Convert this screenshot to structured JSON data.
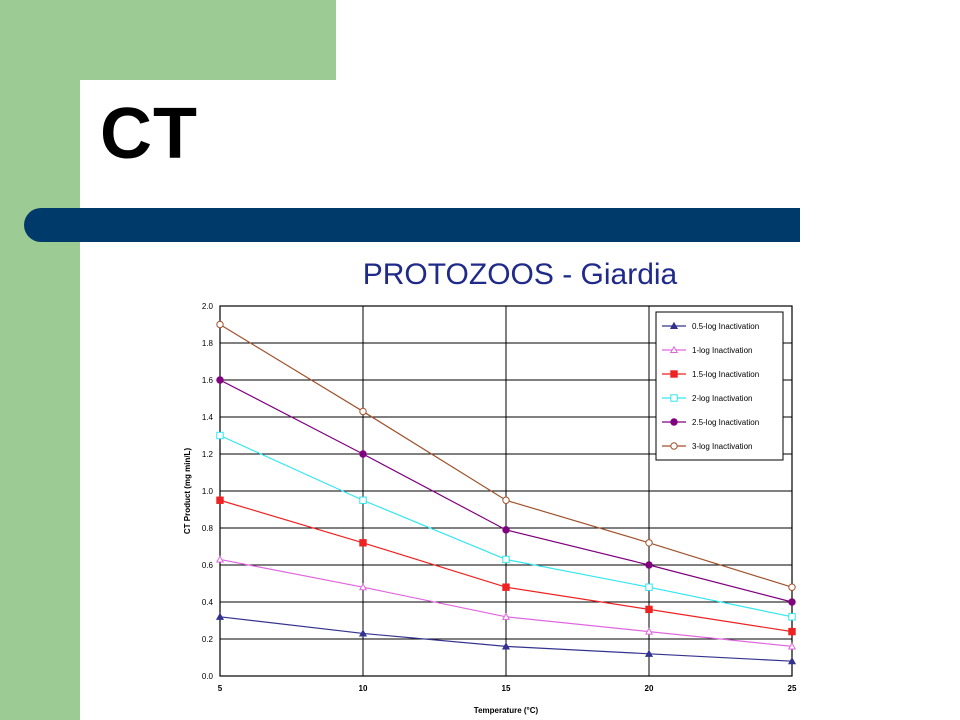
{
  "slide": {
    "title": "CT",
    "subtitle": "PROTOZOOS - Giardia",
    "colors": {
      "green": "#9dcb94",
      "rule": "#003a6b",
      "subtitle": "#1f2a8a"
    }
  },
  "chart_data": {
    "type": "line",
    "title": "",
    "xlabel": "Temperature (°C)",
    "ylabel": "CT Product (mg min/L)",
    "x": [
      5,
      10,
      15,
      20,
      25
    ],
    "xlim": [
      5,
      25
    ],
    "ylim": [
      0,
      2.0
    ],
    "xticks": [
      "5",
      "10",
      "15",
      "20",
      "25"
    ],
    "yticks": [
      "0.0",
      "0.2",
      "0.4",
      "0.6",
      "0.8",
      "1.0",
      "1.2",
      "1.4",
      "1.6",
      "1.8",
      "2.0"
    ],
    "grid": true,
    "legend_position": "top-right",
    "series": [
      {
        "name": "0.5-log Inactivation",
        "values": [
          0.32,
          0.23,
          0.16,
          0.12,
          0.08
        ],
        "color": "#33338f",
        "marker": "triangle"
      },
      {
        "name": "1-log Inactivation",
        "values": [
          0.63,
          0.48,
          0.32,
          0.24,
          0.16
        ],
        "color": "#e066e0",
        "marker": "triangle-open"
      },
      {
        "name": "1.5-log Inactivation",
        "values": [
          0.95,
          0.72,
          0.48,
          0.36,
          0.24
        ],
        "color": "#ee2222",
        "marker": "square"
      },
      {
        "name": "2-log Inactivation",
        "values": [
          1.3,
          0.95,
          0.63,
          0.48,
          0.32
        ],
        "color": "#33e6f0",
        "marker": "square-open"
      },
      {
        "name": "2.5-log Inactivation",
        "values": [
          1.6,
          1.2,
          0.79,
          0.6,
          0.4
        ],
        "color": "#800080",
        "marker": "circle"
      },
      {
        "name": "3-log Inactivation",
        "values": [
          1.9,
          1.43,
          0.95,
          0.72,
          0.48
        ],
        "color": "#a0522d",
        "marker": "circle-open"
      }
    ]
  }
}
